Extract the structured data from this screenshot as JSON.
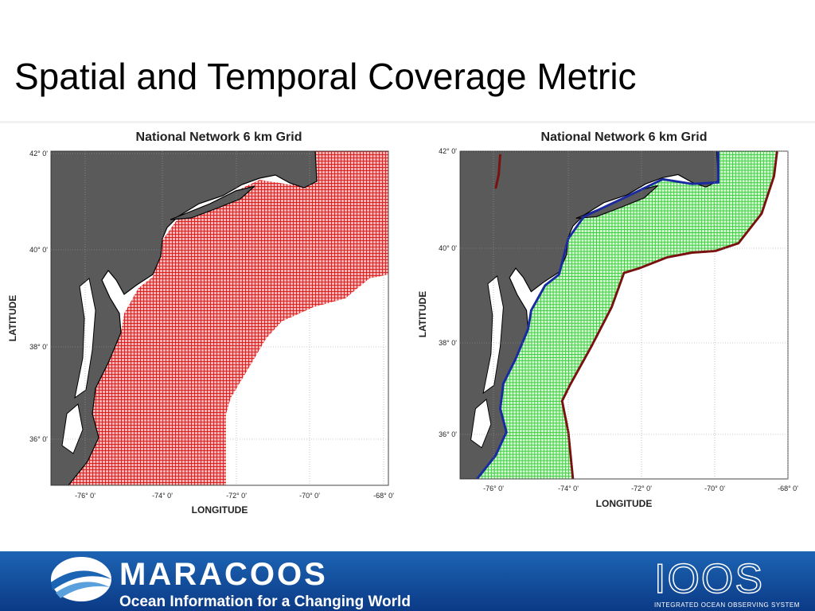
{
  "title": "Spatial and Temporal  Coverage Metric",
  "maps": [
    {
      "title": "National Network 6 km Grid",
      "y_label": "LATITUDE",
      "x_label": "LONGITUDE",
      "lat_ticks": [
        "42° 0'",
        "40° 0'",
        "38° 0'",
        "36° 0'"
      ],
      "lon_ticks": [
        "-76° 0'",
        "-74° 0'",
        "-72° 0'",
        "-70° 0'",
        "-68° 0'"
      ]
    },
    {
      "title": "National Network 6 km Grid",
      "y_label": "LATITUDE",
      "x_label": "LONGITUDE",
      "lat_ticks": [
        "42° 0'",
        "40° 0'",
        "38° 0'",
        "36° 0'"
      ],
      "lon_ticks": [
        "-76° 0'",
        "-74° 0'",
        "-72° 0'",
        "-70° 0'",
        "-68° 0'"
      ]
    }
  ],
  "footer": {
    "logo": "MARACOOS",
    "tagline": "Ocean Information for a Changing World",
    "partner": "IOOS",
    "partner_subtitle": "INTEGRATED OCEAN OBSERVING SYSTEM"
  }
}
